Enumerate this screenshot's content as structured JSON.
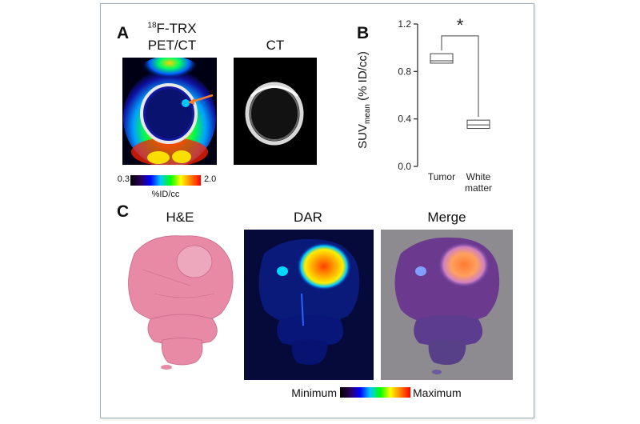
{
  "panel_a": {
    "letter": "A",
    "tracer_sup": "18",
    "tracer_name": "F-TRX",
    "modality_petct": "PET/CT",
    "modality_ct": "CT",
    "scale_min": "0.3",
    "scale_max": "2.0",
    "scale_unit": "%ID/cc"
  },
  "panel_b": {
    "letter": "B",
    "ylabel_main": "SUV",
    "ylabel_sub": "mean",
    "ylabel_rest": " (% ID/cc)",
    "significance": "*",
    "categories": [
      "Tumor",
      "White matter"
    ],
    "category_line1": [
      "Tumor",
      "White"
    ],
    "category_line2": [
      "",
      "matter"
    ],
    "yticks": [
      "0.0",
      "0.4",
      "0.8",
      "1.2"
    ]
  },
  "chart_data": {
    "type": "box",
    "categories": [
      "Tumor",
      "White matter"
    ],
    "series": [
      {
        "values": [
          {
            "min": 0.87,
            "median": 0.89,
            "max": 0.95
          },
          {
            "min": 0.32,
            "median": 0.35,
            "max": 0.39
          }
        ]
      }
    ],
    "ylabel": "SUVmean (% ID/cc)",
    "ylim": [
      0,
      1.2
    ],
    "yticks": [
      0.0,
      0.4,
      0.8,
      1.2
    ],
    "annotations": [
      "*"
    ],
    "grid": false
  },
  "panel_c": {
    "letter": "C",
    "he_label": "H&E",
    "dar_label": "DAR",
    "merge_label": "Merge",
    "scale_min": "Minimum",
    "scale_max": "Maximum"
  },
  "colors": {
    "jet_dark": "#2b0057",
    "jet_blue": "#0000ff",
    "jet_cyan": "#00ffff",
    "jet_green": "#00ff00",
    "jet_yellow": "#ffff00",
    "jet_red": "#ff0000",
    "he_pink": "#e27a9a",
    "dar_bg": "#050a3a",
    "merge_bg": "#8d8a90"
  }
}
